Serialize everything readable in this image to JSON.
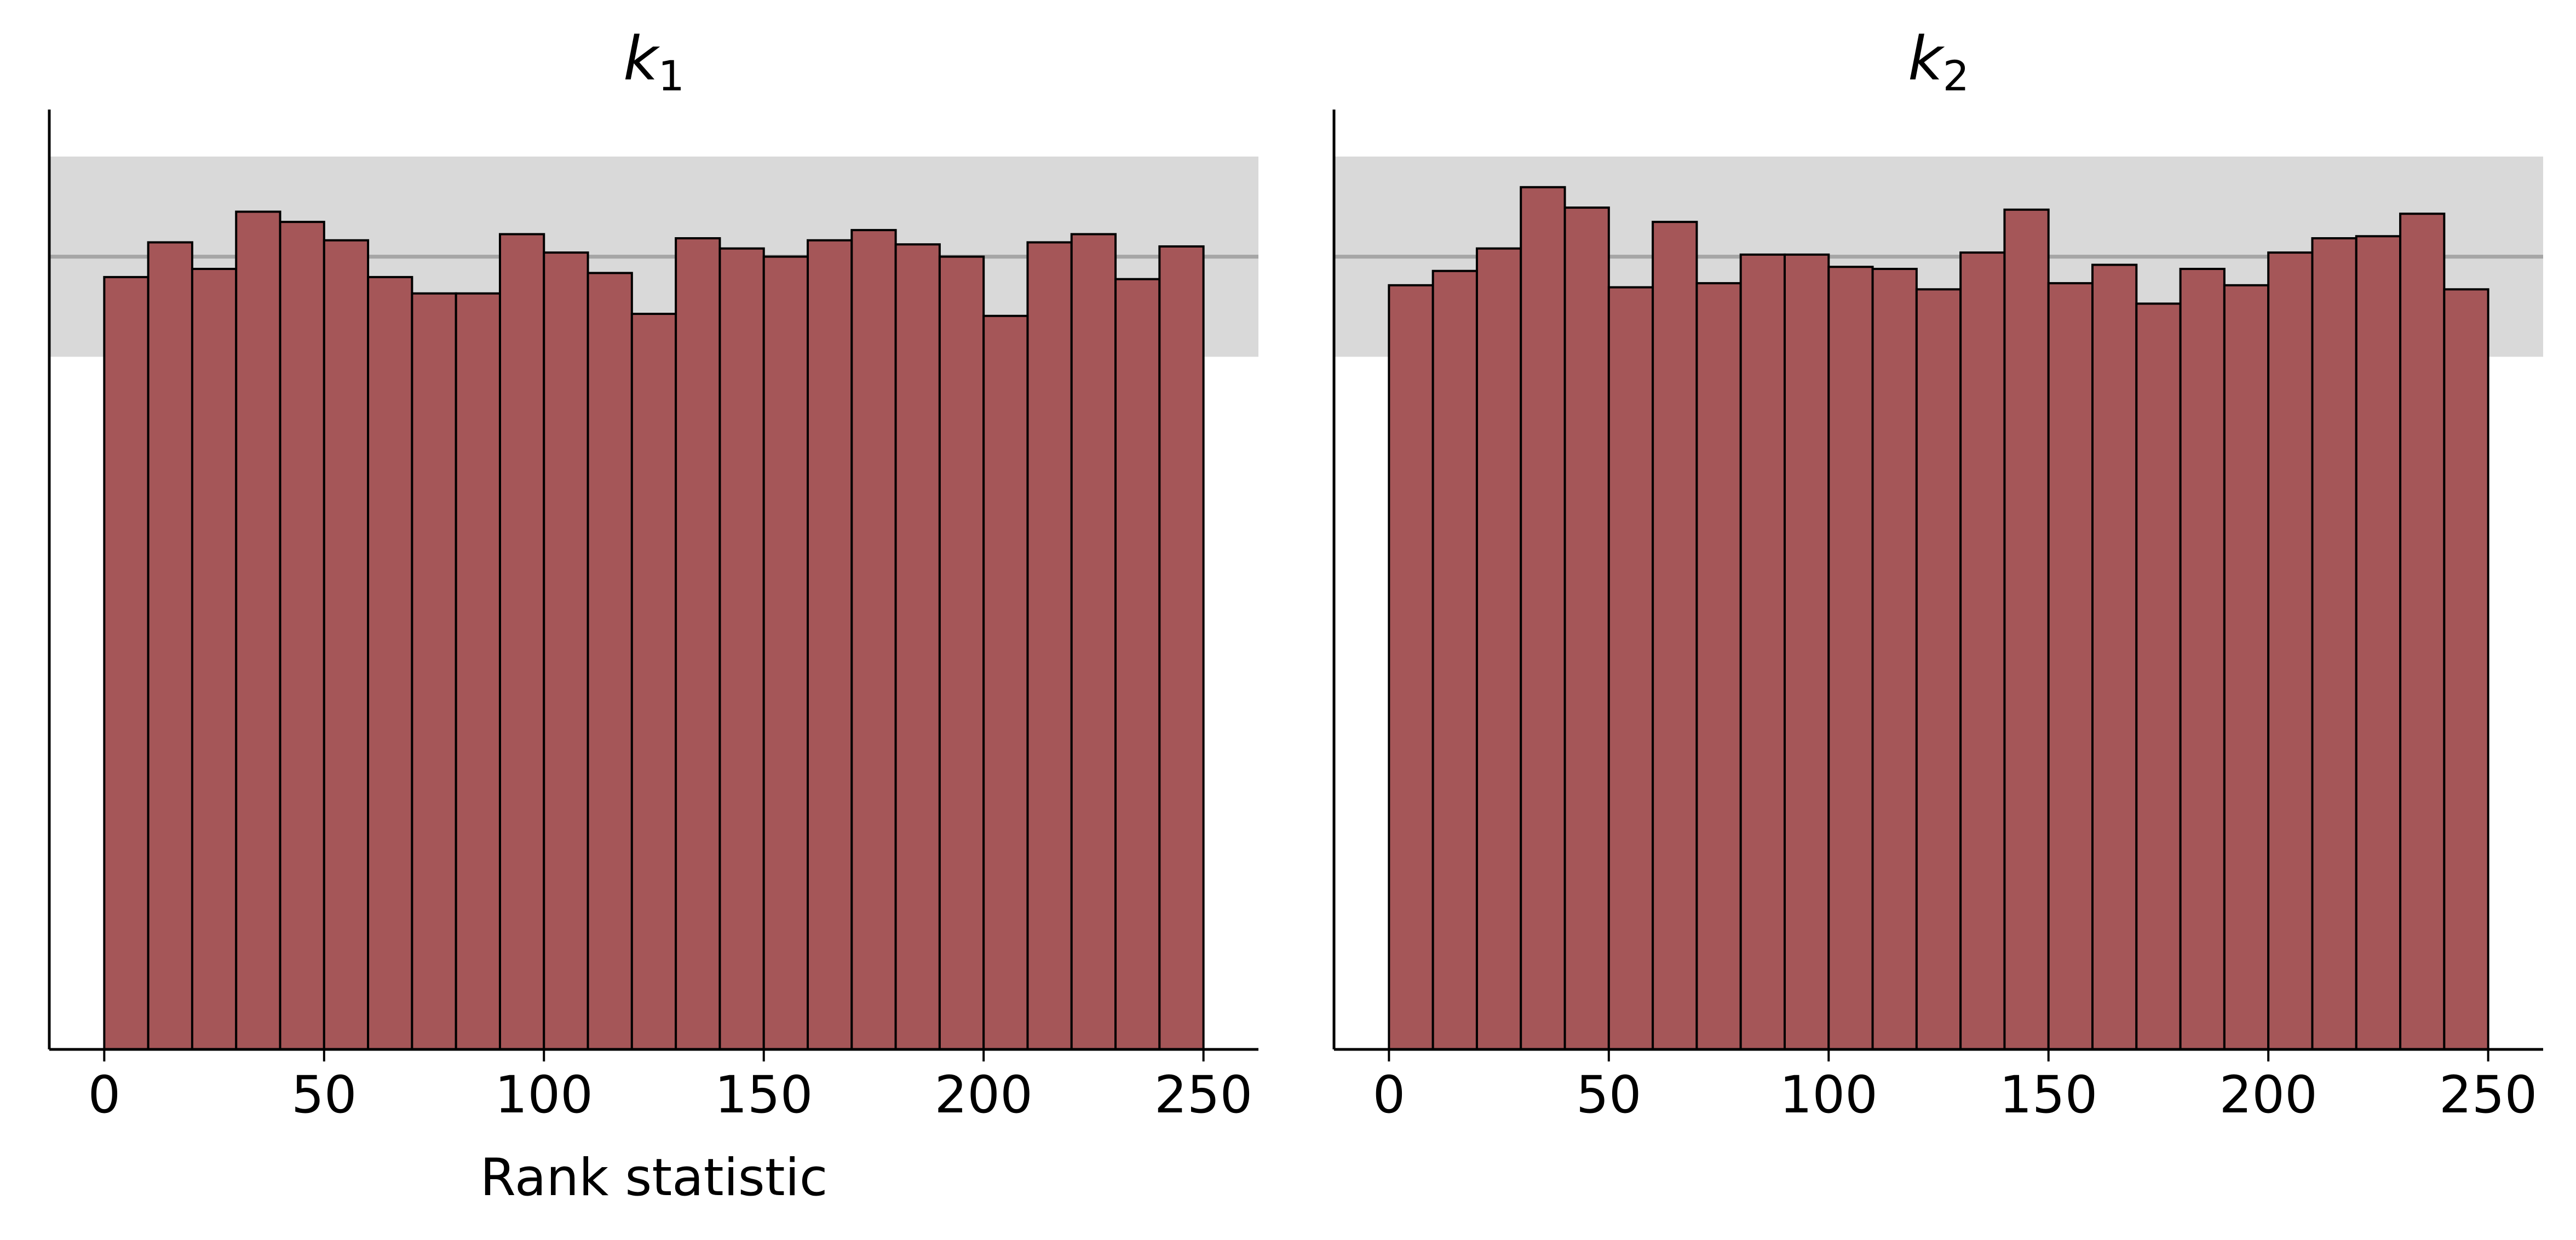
{
  "chart_data": [
    {
      "type": "bar",
      "title": "k",
      "title_subscript": "1",
      "xlabel": "Rank statistic",
      "ylabel": "",
      "xlim": [
        -12.5,
        262.5
      ],
      "ylim": [
        0,
        23
      ],
      "xticks": [
        0,
        50,
        100,
        150,
        200,
        250
      ],
      "y_axis_ticks": false,
      "bin_width": 10,
      "bin_starts": [
        0,
        10,
        20,
        30,
        40,
        50,
        60,
        70,
        80,
        90,
        100,
        110,
        120,
        130,
        140,
        150,
        160,
        170,
        180,
        190,
        200,
        210,
        220,
        230,
        240
      ],
      "values": [
        18.9,
        19.75,
        19.1,
        20.5,
        20.25,
        19.8,
        18.9,
        18.5,
        18.5,
        19.95,
        19.5,
        19.0,
        18.0,
        19.85,
        19.6,
        19.4,
        19.8,
        20.05,
        19.7,
        19.4,
        17.95,
        19.75,
        19.95,
        18.85,
        19.65
      ],
      "uniform_expected": 19.4,
      "uniform_band": [
        16.95,
        21.85
      ]
    },
    {
      "type": "bar",
      "title": "k",
      "title_subscript": "2",
      "xlabel": "",
      "ylabel": "",
      "xlim": [
        -12.5,
        262.5
      ],
      "ylim": [
        0,
        23
      ],
      "xticks": [
        0,
        50,
        100,
        150,
        200,
        250
      ],
      "y_axis_ticks": false,
      "bin_width": 10,
      "bin_starts": [
        0,
        10,
        20,
        30,
        40,
        50,
        60,
        70,
        80,
        90,
        100,
        110,
        120,
        130,
        140,
        150,
        160,
        170,
        180,
        190,
        200,
        210,
        220,
        230,
        240
      ],
      "values": [
        18.7,
        19.05,
        19.6,
        21.1,
        20.6,
        18.65,
        20.25,
        18.75,
        19.45,
        19.45,
        19.15,
        19.1,
        18.6,
        19.5,
        20.55,
        18.75,
        19.2,
        18.25,
        19.1,
        18.7,
        19.5,
        19.85,
        19.9,
        20.45,
        18.6
      ],
      "uniform_expected": 19.4,
      "uniform_band": [
        16.95,
        21.85
      ]
    }
  ],
  "colors": {
    "bar_fill": "#a55658",
    "bar_edge": "#000000",
    "band": "#d9d9d9",
    "expected_line": "#a6a6a6",
    "axis": "#000000",
    "text": "#000000"
  }
}
